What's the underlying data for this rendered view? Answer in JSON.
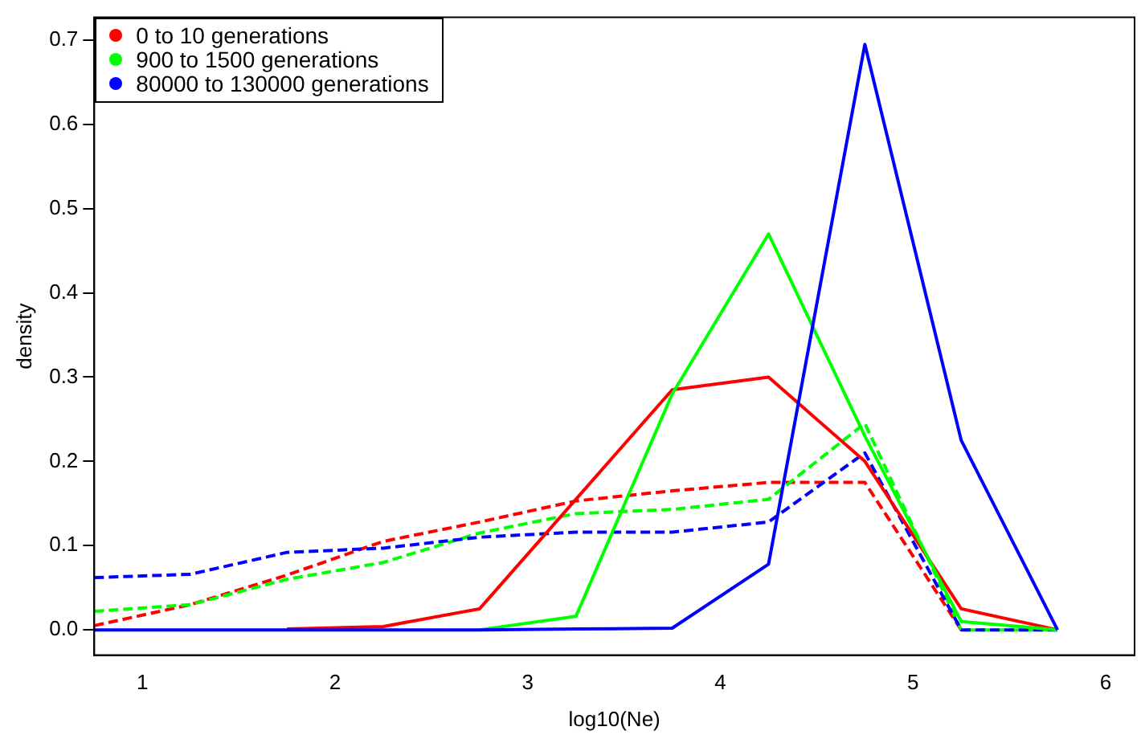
{
  "chart_data": {
    "type": "line",
    "xlabel": "log10(Ne)",
    "ylabel": "density",
    "x": [
      0.75,
      1.25,
      1.75,
      2.25,
      2.75,
      3.25,
      3.75,
      4.25,
      4.75,
      5.25,
      5.75
    ],
    "series": [
      {
        "name": "0 to 10 generations",
        "color": "#ff0000",
        "values": [
          null,
          null,
          0.001,
          0.004,
          0.025,
          0.155,
          0.285,
          0.3,
          0.2,
          0.025,
          0
        ]
      },
      {
        "name": "900 to 1500 generations",
        "color": "#00ff00",
        "values": [
          null,
          null,
          null,
          null,
          0,
          0.016,
          0.28,
          0.47,
          0.23,
          0.01,
          0
        ]
      },
      {
        "name": "80000 to 130000 generations",
        "color": "#0000ff",
        "values": [
          0,
          0,
          0,
          0,
          0,
          0.001,
          0.002,
          0.078,
          0.695,
          0.225,
          0
        ]
      },
      {
        "color": "#ff0000",
        "line_style": "dashed",
        "values": [
          0.005,
          0.03,
          0.065,
          0.105,
          0.128,
          0.153,
          0.165,
          0.175,
          0.175,
          0,
          null
        ]
      },
      {
        "color": "#00ff00",
        "line_style": "dashed",
        "values": [
          0.022,
          0.03,
          0.06,
          0.08,
          0.115,
          0.138,
          0.143,
          0.155,
          0.245,
          0,
          0
        ]
      },
      {
        "color": "#0000ff",
        "line_style": "dashed",
        "values": [
          0.062,
          0.066,
          0.092,
          0.097,
          0.11,
          0.116,
          0.116,
          0.128,
          0.21,
          0,
          0
        ]
      }
    ],
    "xlim": [
      0.75,
      6.15
    ],
    "xticks": [
      1,
      2,
      3,
      4,
      5,
      6
    ],
    "ylim": [
      -0.03,
      0.727
    ],
    "yticks": [
      {
        "value": 0,
        "label": "0.0"
      },
      0.1,
      0.2,
      0.3,
      0.4,
      0.5,
      0.6,
      0.7
    ],
    "grid": false,
    "legend": "top left",
    "marker": "none",
    "line_style": "solid"
  }
}
